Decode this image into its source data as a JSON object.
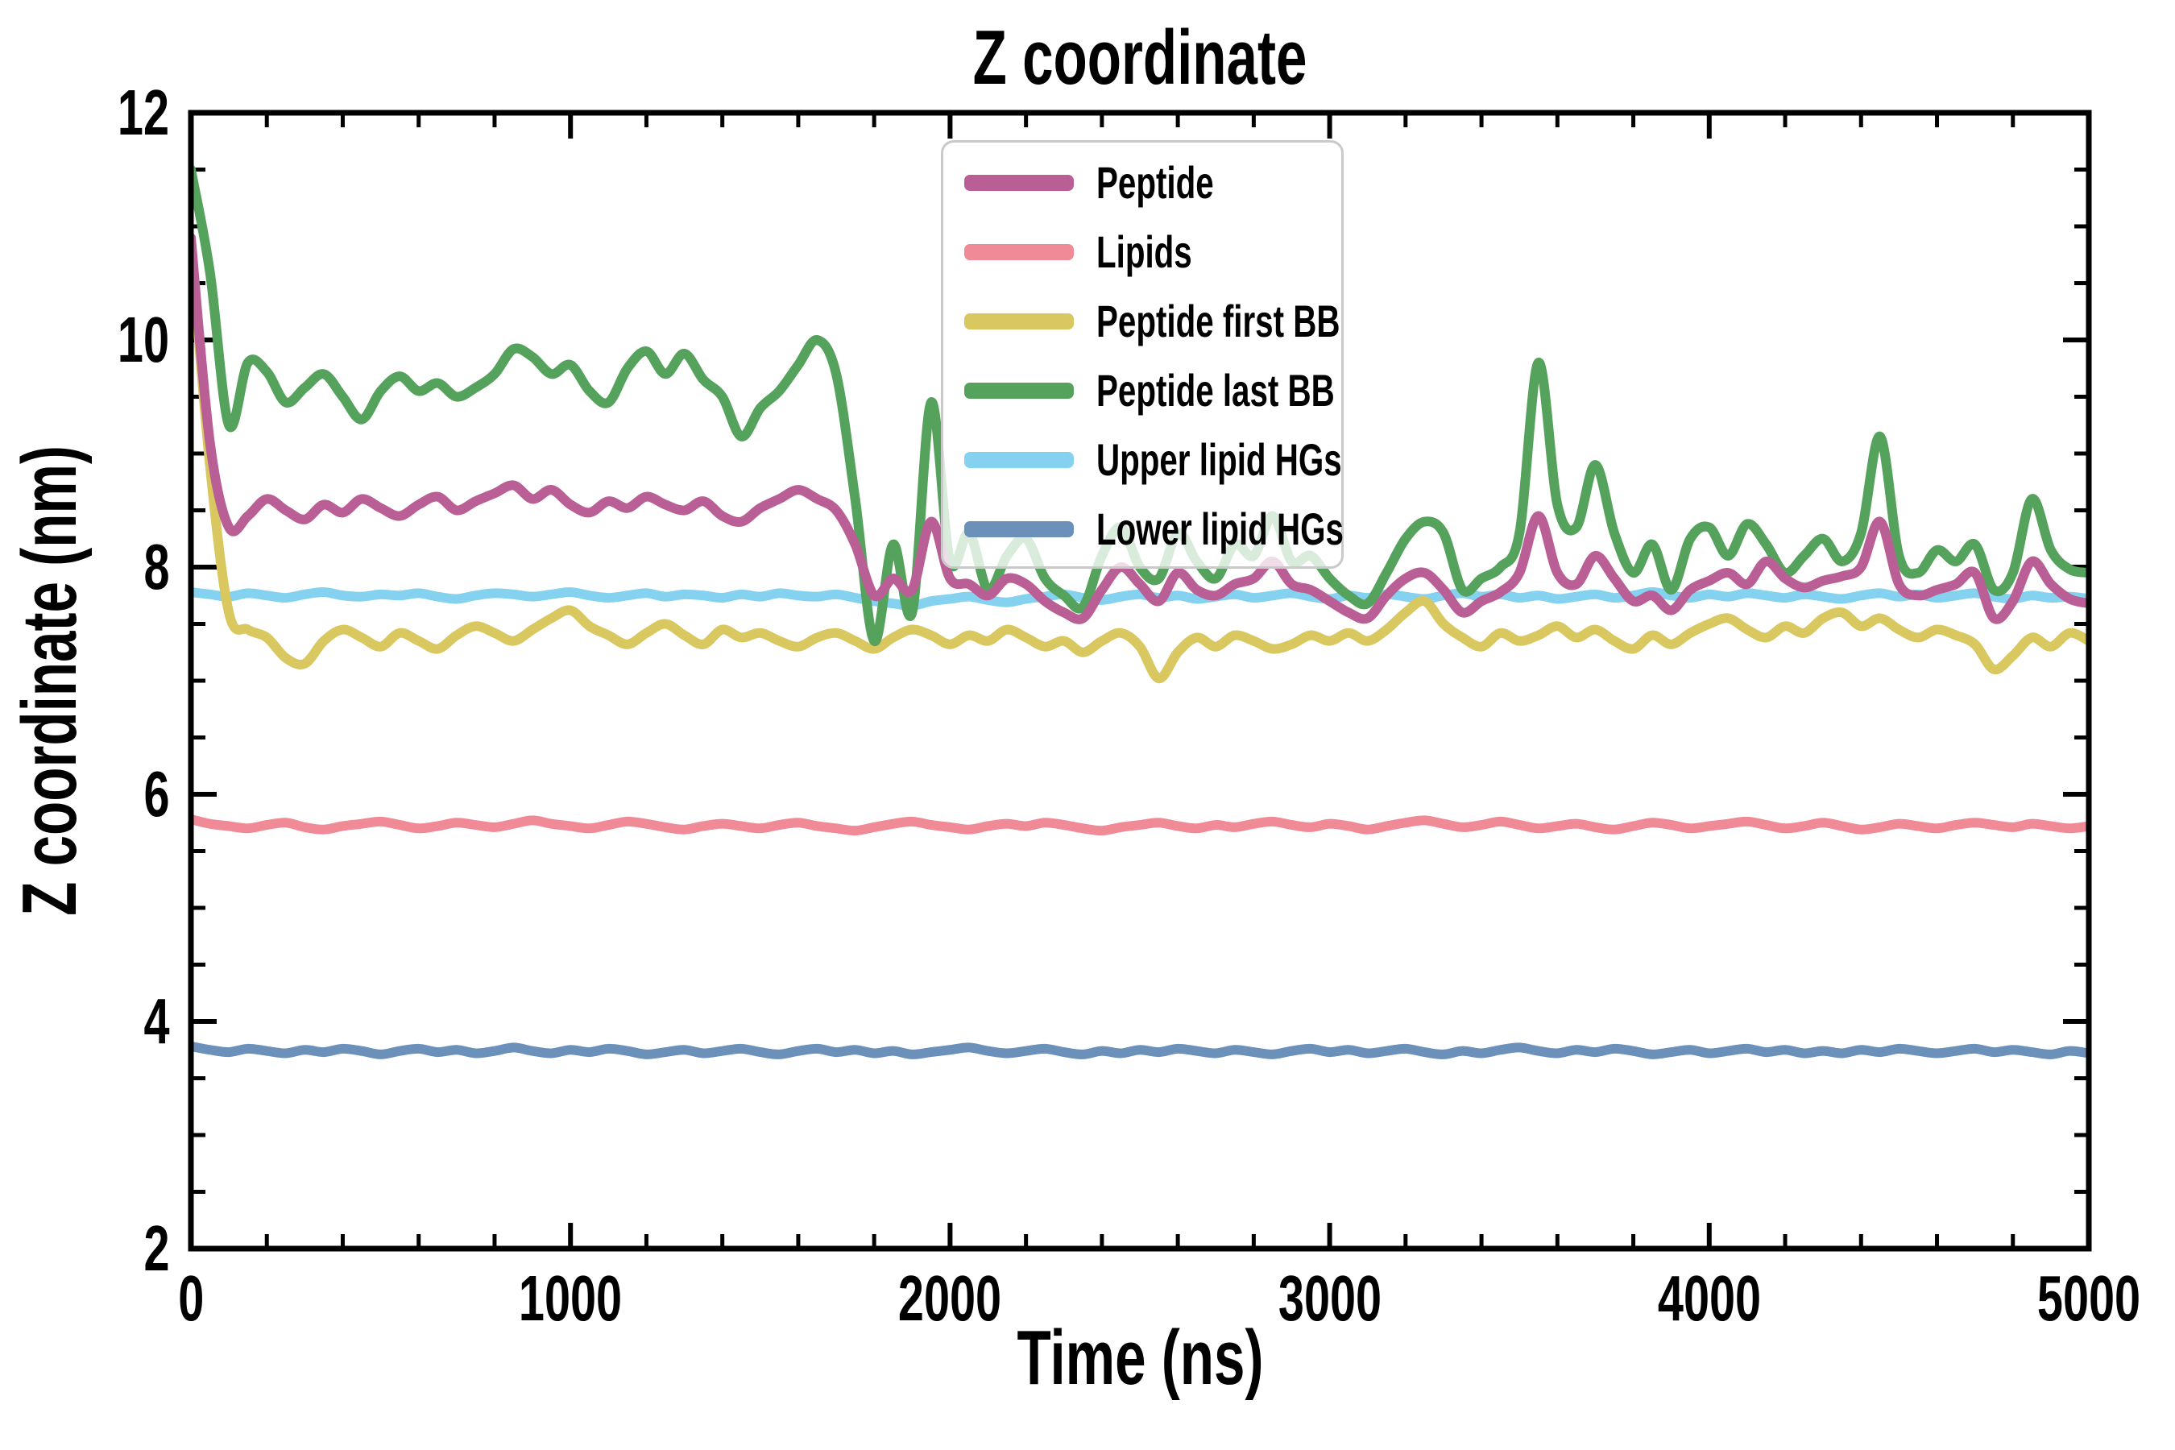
{
  "chart_data": {
    "type": "line",
    "title": "Z coordinate",
    "xlabel": "Time (ns)",
    "ylabel": "Z coordinate (nm)",
    "xlim": [
      0,
      5000
    ],
    "ylim": [
      2,
      12
    ],
    "xticks_major": [
      0,
      1000,
      2000,
      3000,
      4000,
      5000
    ],
    "xtick_minor_step": 200,
    "yticks_major": [
      2,
      4,
      6,
      8,
      10,
      12
    ],
    "ytick_minor_step": 0.5,
    "grid": false,
    "legend_position": "upper center",
    "axis_color": "#000000",
    "background_color": "#ffffff",
    "x_start": 0,
    "x_step": 50,
    "series": [
      {
        "name": "Peptide",
        "color": "#b95f96",
        "values": [
          10.9,
          9.1,
          8.35,
          8.45,
          8.6,
          8.5,
          8.42,
          8.55,
          8.48,
          8.6,
          8.52,
          8.45,
          8.55,
          8.62,
          8.5,
          8.58,
          8.65,
          8.72,
          8.6,
          8.68,
          8.55,
          8.48,
          8.58,
          8.52,
          8.62,
          8.55,
          8.5,
          8.58,
          8.45,
          8.4,
          8.52,
          8.6,
          8.68,
          8.6,
          8.5,
          8.2,
          7.75,
          7.9,
          7.8,
          8.4,
          7.9,
          7.85,
          7.75,
          7.9,
          7.85,
          7.7,
          7.6,
          7.55,
          7.8,
          8.0,
          7.85,
          7.7,
          7.95,
          7.8,
          7.75,
          7.85,
          7.9,
          8.05,
          7.85,
          7.8,
          7.7,
          7.6,
          7.55,
          7.75,
          7.9,
          7.95,
          7.8,
          7.6,
          7.7,
          7.78,
          7.95,
          8.45,
          7.95,
          7.85,
          8.1,
          7.9,
          7.7,
          7.75,
          7.62,
          7.8,
          7.88,
          7.95,
          7.85,
          8.05,
          7.9,
          7.82,
          7.88,
          7.92,
          8.0,
          8.4,
          7.85,
          7.75,
          7.8,
          7.85,
          7.95,
          7.55,
          7.7,
          8.05,
          7.85,
          7.72,
          7.68
        ]
      },
      {
        "name": "Lipids",
        "color": "#f08a96",
        "values": [
          5.78,
          5.74,
          5.72,
          5.7,
          5.73,
          5.75,
          5.71,
          5.69,
          5.72,
          5.74,
          5.76,
          5.73,
          5.7,
          5.72,
          5.75,
          5.73,
          5.71,
          5.74,
          5.77,
          5.74,
          5.72,
          5.7,
          5.73,
          5.76,
          5.74,
          5.71,
          5.69,
          5.72,
          5.74,
          5.72,
          5.7,
          5.73,
          5.75,
          5.72,
          5.7,
          5.68,
          5.71,
          5.74,
          5.76,
          5.73,
          5.71,
          5.69,
          5.72,
          5.74,
          5.72,
          5.75,
          5.73,
          5.7,
          5.68,
          5.71,
          5.73,
          5.75,
          5.72,
          5.7,
          5.73,
          5.71,
          5.74,
          5.76,
          5.73,
          5.71,
          5.74,
          5.72,
          5.69,
          5.72,
          5.75,
          5.77,
          5.74,
          5.71,
          5.73,
          5.76,
          5.73,
          5.7,
          5.72,
          5.74,
          5.71,
          5.69,
          5.72,
          5.75,
          5.73,
          5.7,
          5.72,
          5.74,
          5.76,
          5.73,
          5.7,
          5.72,
          5.75,
          5.72,
          5.69,
          5.71,
          5.74,
          5.72,
          5.7,
          5.73,
          5.75,
          5.73,
          5.71,
          5.74,
          5.72,
          5.7,
          5.72
        ]
      },
      {
        "name": "Peptide first BB",
        "color": "#d9c75f",
        "values": [
          10.85,
          8.9,
          7.6,
          7.45,
          7.38,
          7.2,
          7.15,
          7.35,
          7.45,
          7.38,
          7.3,
          7.42,
          7.35,
          7.28,
          7.4,
          7.48,
          7.42,
          7.35,
          7.45,
          7.55,
          7.62,
          7.48,
          7.4,
          7.32,
          7.42,
          7.5,
          7.4,
          7.32,
          7.45,
          7.38,
          7.42,
          7.35,
          7.3,
          7.38,
          7.42,
          7.35,
          7.28,
          7.38,
          7.45,
          7.4,
          7.32,
          7.4,
          7.35,
          7.45,
          7.38,
          7.3,
          7.35,
          7.25,
          7.35,
          7.42,
          7.3,
          7.02,
          7.25,
          7.38,
          7.3,
          7.4,
          7.35,
          7.28,
          7.32,
          7.4,
          7.35,
          7.42,
          7.35,
          7.45,
          7.6,
          7.7,
          7.5,
          7.38,
          7.3,
          7.42,
          7.35,
          7.4,
          7.48,
          7.38,
          7.45,
          7.35,
          7.28,
          7.4,
          7.32,
          7.42,
          7.5,
          7.55,
          7.45,
          7.38,
          7.48,
          7.42,
          7.55,
          7.6,
          7.48,
          7.55,
          7.45,
          7.38,
          7.45,
          7.4,
          7.32,
          7.1,
          7.22,
          7.38,
          7.3,
          7.42,
          7.35
        ]
      },
      {
        "name": "Peptide last BB",
        "color": "#55a25d",
        "values": [
          11.5,
          10.6,
          9.25,
          9.8,
          9.72,
          9.45,
          9.58,
          9.7,
          9.5,
          9.3,
          9.55,
          9.68,
          9.55,
          9.62,
          9.5,
          9.58,
          9.7,
          9.92,
          9.85,
          9.7,
          9.78,
          9.55,
          9.45,
          9.75,
          9.9,
          9.7,
          9.88,
          9.65,
          9.5,
          9.15,
          9.4,
          9.55,
          9.78,
          10.0,
          9.7,
          8.6,
          7.35,
          8.2,
          7.6,
          9.45,
          8.05,
          8.3,
          7.8,
          8.1,
          8.25,
          7.9,
          7.75,
          7.65,
          8.1,
          8.35,
          8.0,
          7.9,
          8.3,
          8.05,
          7.9,
          8.2,
          8.1,
          8.45,
          8.05,
          8.1,
          7.9,
          7.75,
          7.68,
          7.95,
          8.25,
          8.4,
          8.3,
          7.8,
          7.9,
          8.0,
          8.3,
          9.8,
          8.55,
          8.35,
          8.9,
          8.3,
          7.95,
          8.2,
          7.8,
          8.25,
          8.35,
          8.1,
          8.38,
          8.2,
          7.95,
          8.1,
          8.25,
          8.05,
          8.3,
          9.15,
          8.1,
          7.95,
          8.15,
          8.05,
          8.2,
          7.8,
          7.95,
          8.6,
          8.15,
          7.98,
          7.95
        ]
      },
      {
        "name": "Upper lipid HGs",
        "color": "#85d2f0",
        "values": [
          7.78,
          7.76,
          7.74,
          7.77,
          7.75,
          7.73,
          7.76,
          7.78,
          7.75,
          7.74,
          7.76,
          7.75,
          7.77,
          7.74,
          7.72,
          7.75,
          7.77,
          7.76,
          7.74,
          7.76,
          7.78,
          7.75,
          7.73,
          7.75,
          7.77,
          7.74,
          7.76,
          7.75,
          7.73,
          7.76,
          7.74,
          7.77,
          7.75,
          7.74,
          7.76,
          7.73,
          7.7,
          7.68,
          7.66,
          7.7,
          7.72,
          7.74,
          7.71,
          7.69,
          7.72,
          7.74,
          7.76,
          7.73,
          7.71,
          7.74,
          7.76,
          7.73,
          7.75,
          7.72,
          7.74,
          7.76,
          7.73,
          7.75,
          7.77,
          7.74,
          7.72,
          7.75,
          7.73,
          7.76,
          7.74,
          7.72,
          7.75,
          7.77,
          7.74,
          7.76,
          7.73,
          7.75,
          7.72,
          7.74,
          7.76,
          7.73,
          7.75,
          7.78,
          7.75,
          7.73,
          7.76,
          7.74,
          7.77,
          7.75,
          7.73,
          7.76,
          7.74,
          7.72,
          7.75,
          7.77,
          7.74,
          7.76,
          7.73,
          7.75,
          7.77,
          7.74,
          7.72,
          7.75,
          7.73,
          7.74,
          7.72
        ]
      },
      {
        "name": "Lower lipid HGs",
        "color": "#6b90ba",
        "values": [
          3.78,
          3.75,
          3.73,
          3.76,
          3.74,
          3.72,
          3.75,
          3.73,
          3.76,
          3.74,
          3.71,
          3.74,
          3.76,
          3.73,
          3.75,
          3.72,
          3.74,
          3.77,
          3.74,
          3.72,
          3.75,
          3.73,
          3.76,
          3.74,
          3.71,
          3.73,
          3.75,
          3.72,
          3.74,
          3.76,
          3.73,
          3.71,
          3.74,
          3.76,
          3.73,
          3.75,
          3.72,
          3.74,
          3.71,
          3.73,
          3.75,
          3.77,
          3.74,
          3.72,
          3.74,
          3.76,
          3.73,
          3.71,
          3.74,
          3.72,
          3.75,
          3.73,
          3.76,
          3.74,
          3.72,
          3.75,
          3.73,
          3.71,
          3.74,
          3.76,
          3.73,
          3.75,
          3.72,
          3.74,
          3.76,
          3.73,
          3.71,
          3.74,
          3.72,
          3.75,
          3.77,
          3.74,
          3.72,
          3.75,
          3.73,
          3.76,
          3.74,
          3.71,
          3.73,
          3.75,
          3.72,
          3.74,
          3.76,
          3.73,
          3.75,
          3.72,
          3.74,
          3.72,
          3.75,
          3.73,
          3.76,
          3.74,
          3.72,
          3.74,
          3.76,
          3.73,
          3.75,
          3.73,
          3.71,
          3.74,
          3.72
        ]
      }
    ]
  }
}
